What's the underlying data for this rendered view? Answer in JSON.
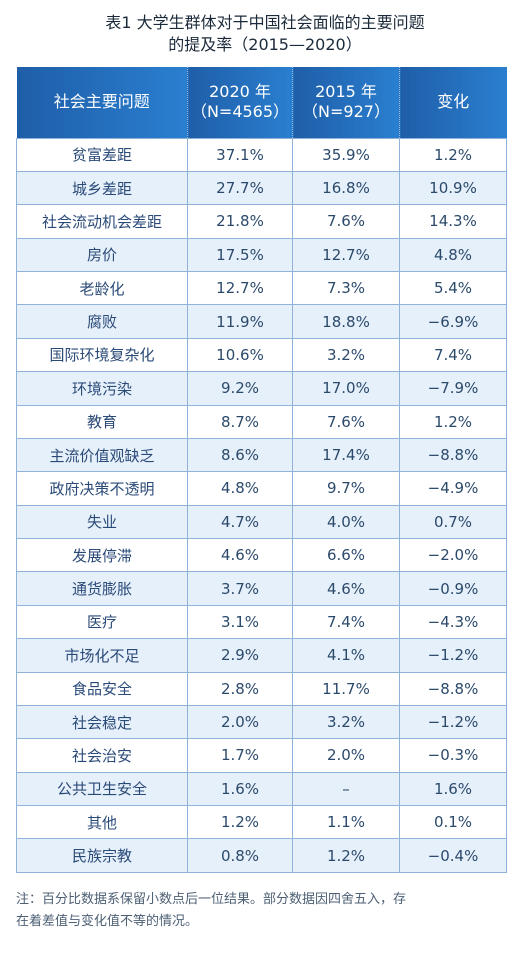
{
  "title": {
    "line1": "表1  大学生群体对于中国社会面临的主要问题",
    "line2": "的提及率（2015—2020）"
  },
  "header": {
    "col1": "社会主要问题",
    "col2_line1": "2020 年",
    "col2_line2": "（N=4565）",
    "col3_line1": "2015 年",
    "col3_line2": "（N=927）",
    "col4": "变化"
  },
  "rows": [
    {
      "issue": "贫富差距",
      "y2020": "37.1%",
      "y2015": "35.9%",
      "change": "1.2%"
    },
    {
      "issue": "城乡差距",
      "y2020": "27.7%",
      "y2015": "16.8%",
      "change": "10.9%"
    },
    {
      "issue": "社会流动机会差距",
      "y2020": "21.8%",
      "y2015": "7.6%",
      "change": "14.3%"
    },
    {
      "issue": "房价",
      "y2020": "17.5%",
      "y2015": "12.7%",
      "change": "4.8%"
    },
    {
      "issue": "老龄化",
      "y2020": "12.7%",
      "y2015": "7.3%",
      "change": "5.4%"
    },
    {
      "issue": "腐败",
      "y2020": "11.9%",
      "y2015": "18.8%",
      "change": "−6.9%"
    },
    {
      "issue": "国际环境复杂化",
      "y2020": "10.6%",
      "y2015": "3.2%",
      "change": "7.4%"
    },
    {
      "issue": "环境污染",
      "y2020": "9.2%",
      "y2015": "17.0%",
      "change": "−7.9%"
    },
    {
      "issue": "教育",
      "y2020": "8.7%",
      "y2015": "7.6%",
      "change": "1.2%"
    },
    {
      "issue": "主流价值观缺乏",
      "y2020": "8.6%",
      "y2015": "17.4%",
      "change": "−8.8%"
    },
    {
      "issue": "政府决策不透明",
      "y2020": "4.8%",
      "y2015": "9.7%",
      "change": "−4.9%"
    },
    {
      "issue": "失业",
      "y2020": "4.7%",
      "y2015": "4.0%",
      "change": "0.7%"
    },
    {
      "issue": "发展停滞",
      "y2020": "4.6%",
      "y2015": "6.6%",
      "change": "−2.0%"
    },
    {
      "issue": "通货膨胀",
      "y2020": "3.7%",
      "y2015": "4.6%",
      "change": "−0.9%"
    },
    {
      "issue": "医疗",
      "y2020": "3.1%",
      "y2015": "7.4%",
      "change": "−4.3%"
    },
    {
      "issue": "市场化不足",
      "y2020": "2.9%",
      "y2015": "4.1%",
      "change": "−1.2%"
    },
    {
      "issue": "食品安全",
      "y2020": "2.8%",
      "y2015": "11.7%",
      "change": "−8.8%"
    },
    {
      "issue": "社会稳定",
      "y2020": "2.0%",
      "y2015": "3.2%",
      "change": "−1.2%"
    },
    {
      "issue": "社会治安",
      "y2020": "1.7%",
      "y2015": "2.0%",
      "change": "−0.3%"
    },
    {
      "issue": "公共卫生安全",
      "y2020": "1.6%",
      "y2015": "–",
      "change": "1.6%"
    },
    {
      "issue": "其他",
      "y2020": "1.2%",
      "y2015": "1.1%",
      "change": "0.1%"
    },
    {
      "issue": "民族宗教",
      "y2020": "0.8%",
      "y2015": "1.2%",
      "change": "−0.4%"
    }
  ],
  "note": {
    "line1": "注：百分比数据系保留小数点后一位结果。部分数据因四舍五入，存",
    "line2": "在着差值与变化值不等的情况。"
  },
  "colors": {
    "header_start": "#1f5ea8",
    "header_end": "#2a7fd0",
    "alt_row": "#e6f0fa",
    "border": "#8fb2d8"
  }
}
